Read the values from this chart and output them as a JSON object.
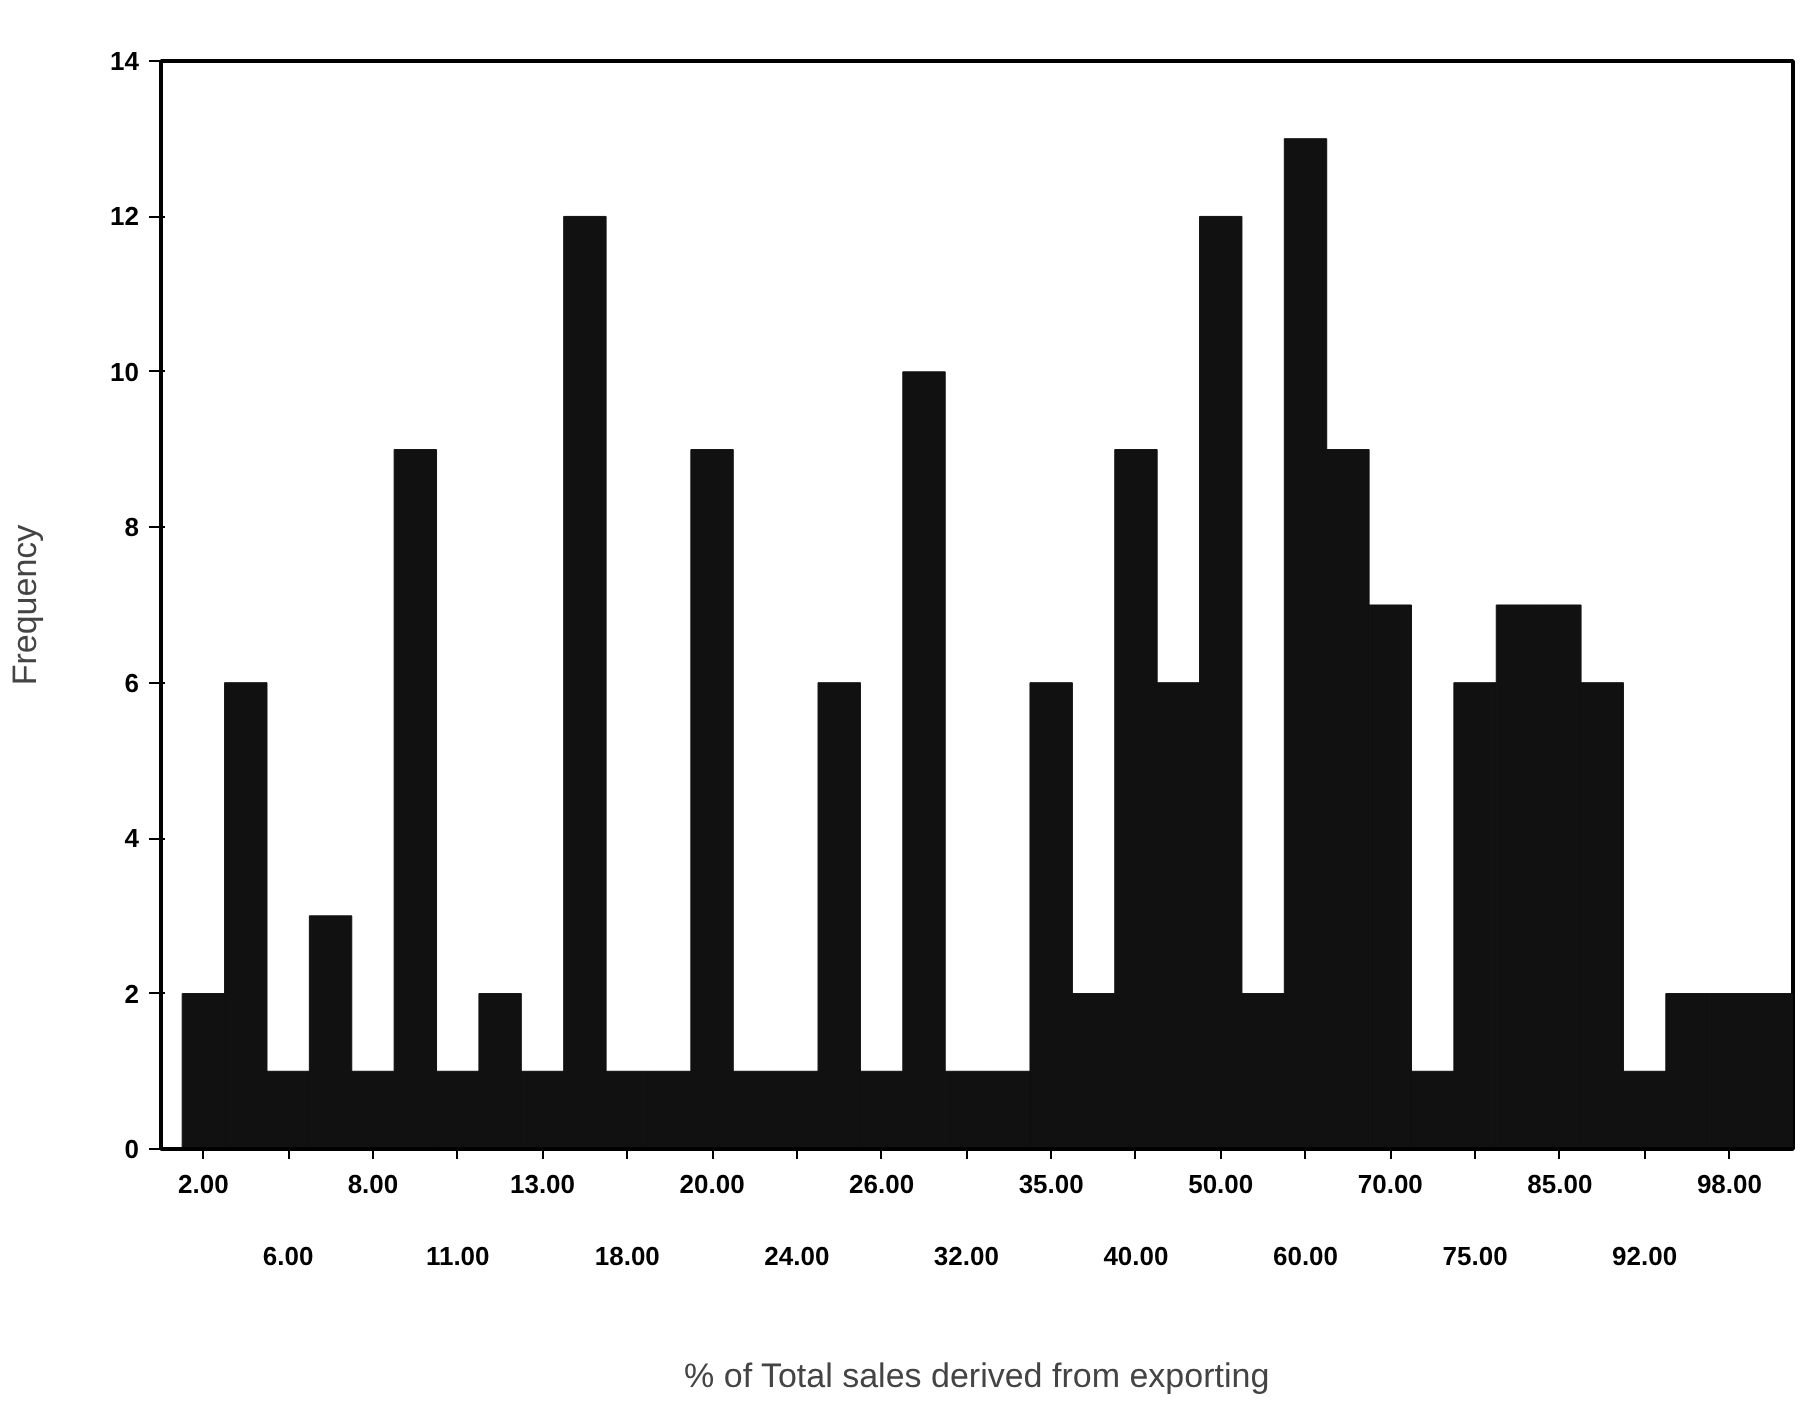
{
  "chart_data": {
    "type": "bar",
    "xlabel": "% of Total sales derived from exporting",
    "ylabel": "Frequency",
    "categories": [
      "2.00",
      null,
      "6.00",
      null,
      "8.00",
      null,
      "11.00",
      null,
      "13.00",
      null,
      "18.00",
      null,
      "20.00",
      null,
      "24.00",
      null,
      "26.00",
      null,
      "32.00",
      null,
      "35.00",
      null,
      "40.00",
      null,
      "50.00",
      null,
      "60.00",
      null,
      "70.00",
      null,
      "75.00",
      null,
      "85.00",
      null,
      "92.00",
      null,
      "98.00",
      null
    ],
    "values": [
      2,
      6,
      1,
      3,
      1,
      9,
      1,
      2,
      1,
      12,
      1,
      1,
      9,
      1,
      1,
      6,
      1,
      10,
      1,
      1,
      6,
      2,
      9,
      6,
      12,
      2,
      13,
      9,
      7,
      1,
      6,
      7,
      7,
      6,
      1,
      2,
      2,
      2
    ],
    "color": "#111111",
    "ylim": [
      0,
      14
    ],
    "yticks": [
      0,
      2,
      4,
      6,
      8,
      10,
      12,
      14
    ],
    "grid": false
  }
}
